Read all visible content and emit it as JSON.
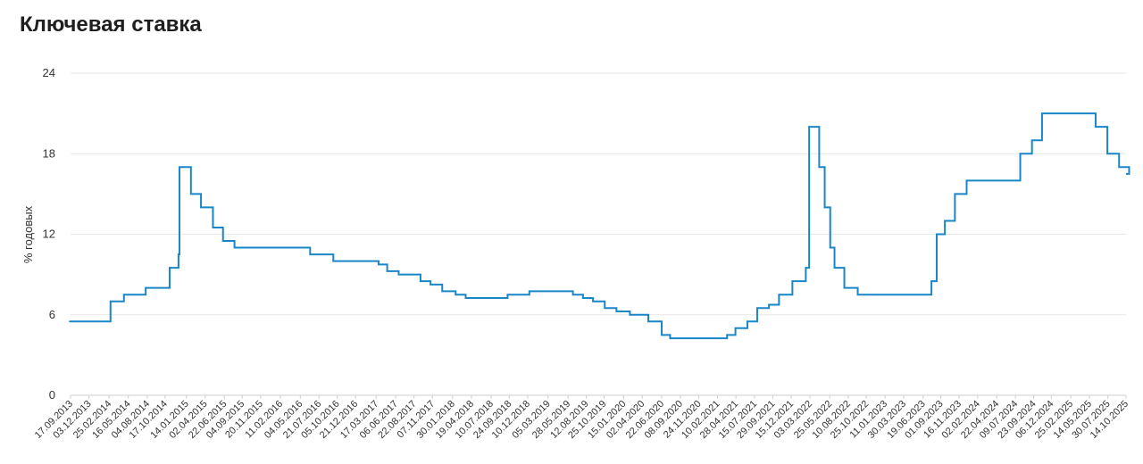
{
  "chart_data": {
    "type": "line",
    "step": "after",
    "title": "Ключевая ставка",
    "xlabel": "",
    "ylabel": "% годовых",
    "ylim": [
      0,
      24
    ],
    "yticks": [
      0,
      6,
      12,
      18,
      24
    ],
    "grid": true,
    "series_color": "#1a86c8",
    "xticks": [
      "17.09.2013",
      "03.12.2013",
      "25.02.2014",
      "16.05.2014",
      "04.08.2014",
      "17.10.2014",
      "14.01.2015",
      "02.04.2015",
      "22.06.2015",
      "04.09.2015",
      "20.11.2015",
      "11.02.2016",
      "04.05.2016",
      "21.07.2016",
      "05.10.2016",
      "21.12.2016",
      "17.03.2017",
      "06.06.2017",
      "22.08.2017",
      "07.11.2017",
      "30.01.2018",
      "19.04.2018",
      "10.07.2018",
      "24.09.2018",
      "10.12.2018",
      "05.03.2019",
      "28.05.2019",
      "12.08.2019",
      "25.10.2019",
      "15.01.2020",
      "02.04.2020",
      "22.06.2020",
      "08.09.2020",
      "24.11.2020",
      "10.02.2021",
      "28.04.2021",
      "15.07.2021",
      "29.09.2021",
      "15.12.2021",
      "03.03.2022",
      "25.05.2022",
      "10.08.2022",
      "25.10.2022",
      "11.01.2023",
      "30.03.2023",
      "19.06.2023",
      "01.09.2023",
      "16.11.2023",
      "02.02.2024",
      "22.04.2024",
      "09.07.2024",
      "23.09.2024",
      "06.12.2024",
      "25.02.2025",
      "14.05.2025",
      "30.07.2025",
      "14.10.2025"
    ],
    "points": [
      {
        "date": "2013-09-13",
        "value": 5.5
      },
      {
        "date": "2014-03-03",
        "value": 7.0
      },
      {
        "date": "2014-04-28",
        "value": 7.5
      },
      {
        "date": "2014-07-28",
        "value": 8.0
      },
      {
        "date": "2014-11-05",
        "value": 9.5
      },
      {
        "date": "2014-12-12",
        "value": 10.5
      },
      {
        "date": "2014-12-16",
        "value": 17.0
      },
      {
        "date": "2015-02-02",
        "value": 15.0
      },
      {
        "date": "2015-03-16",
        "value": 14.0
      },
      {
        "date": "2015-05-05",
        "value": 12.5
      },
      {
        "date": "2015-06-16",
        "value": 11.5
      },
      {
        "date": "2015-08-03",
        "value": 11.0
      },
      {
        "date": "2016-06-14",
        "value": 10.5
      },
      {
        "date": "2016-09-19",
        "value": 10.0
      },
      {
        "date": "2017-03-27",
        "value": 9.75
      },
      {
        "date": "2017-05-02",
        "value": 9.25
      },
      {
        "date": "2017-06-19",
        "value": 9.0
      },
      {
        "date": "2017-09-18",
        "value": 8.5
      },
      {
        "date": "2017-10-30",
        "value": 8.25
      },
      {
        "date": "2017-12-18",
        "value": 7.75
      },
      {
        "date": "2018-02-12",
        "value": 7.5
      },
      {
        "date": "2018-03-26",
        "value": 7.25
      },
      {
        "date": "2018-09-17",
        "value": 7.5
      },
      {
        "date": "2018-12-17",
        "value": 7.75
      },
      {
        "date": "2019-06-17",
        "value": 7.5
      },
      {
        "date": "2019-07-29",
        "value": 7.25
      },
      {
        "date": "2019-09-09",
        "value": 7.0
      },
      {
        "date": "2019-10-28",
        "value": 6.5
      },
      {
        "date": "2019-12-16",
        "value": 6.25
      },
      {
        "date": "2020-02-10",
        "value": 6.0
      },
      {
        "date": "2020-04-27",
        "value": 5.5
      },
      {
        "date": "2020-06-22",
        "value": 4.5
      },
      {
        "date": "2020-07-27",
        "value": 4.25
      },
      {
        "date": "2021-03-22",
        "value": 4.5
      },
      {
        "date": "2021-04-26",
        "value": 5.0
      },
      {
        "date": "2021-06-15",
        "value": 5.5
      },
      {
        "date": "2021-07-26",
        "value": 6.5
      },
      {
        "date": "2021-09-13",
        "value": 6.75
      },
      {
        "date": "2021-10-25",
        "value": 7.5
      },
      {
        "date": "2021-12-20",
        "value": 8.5
      },
      {
        "date": "2022-02-14",
        "value": 9.5
      },
      {
        "date": "2022-02-28",
        "value": 20.0
      },
      {
        "date": "2022-04-11",
        "value": 17.0
      },
      {
        "date": "2022-05-04",
        "value": 14.0
      },
      {
        "date": "2022-05-27",
        "value": 11.0
      },
      {
        "date": "2022-06-14",
        "value": 9.5
      },
      {
        "date": "2022-07-25",
        "value": 8.0
      },
      {
        "date": "2022-09-19",
        "value": 7.5
      },
      {
        "date": "2023-07-24",
        "value": 8.5
      },
      {
        "date": "2023-08-15",
        "value": 12.0
      },
      {
        "date": "2023-09-18",
        "value": 13.0
      },
      {
        "date": "2023-10-30",
        "value": 15.0
      },
      {
        "date": "2023-12-18",
        "value": 16.0
      },
      {
        "date": "2024-07-29",
        "value": 18.0
      },
      {
        "date": "2024-09-16",
        "value": 19.0
      },
      {
        "date": "2024-10-28",
        "value": 21.0
      },
      {
        "date": "2025-06-09",
        "value": 20.0
      },
      {
        "date": "2025-07-28",
        "value": 18.0
      },
      {
        "date": "2025-09-15",
        "value": 17.0
      },
      {
        "date": "2025-10-27",
        "value": 16.5
      }
    ]
  }
}
